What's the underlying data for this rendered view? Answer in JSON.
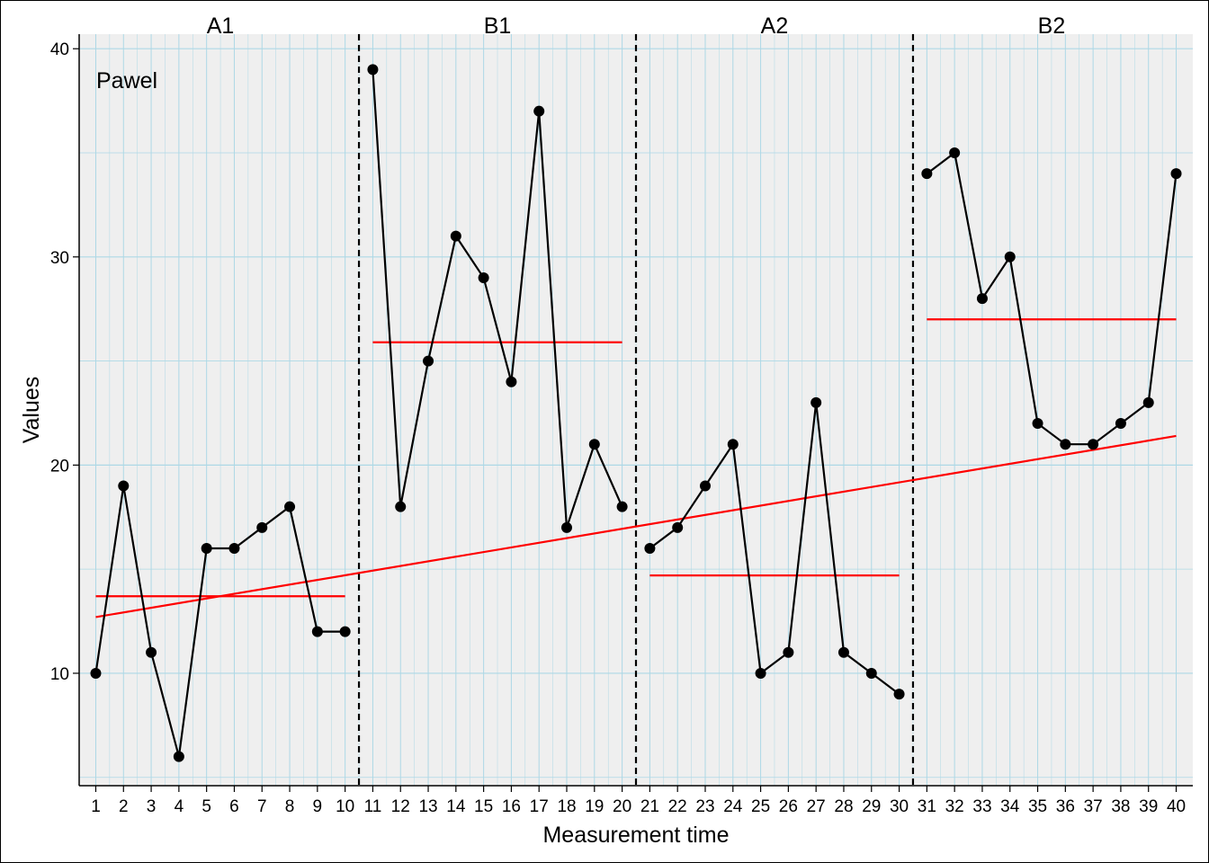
{
  "chart_data": {
    "type": "line",
    "title": "",
    "case_label": "Pawel",
    "xlabel": "Measurement time",
    "ylabel": "Values",
    "xlim": [
      0.4,
      40.6
    ],
    "ylim": [
      4.6,
      40.7
    ],
    "x_ticks": [
      1,
      2,
      3,
      4,
      5,
      6,
      7,
      8,
      9,
      10,
      11,
      12,
      13,
      14,
      15,
      16,
      17,
      18,
      19,
      20,
      21,
      22,
      23,
      24,
      25,
      26,
      27,
      28,
      29,
      30,
      31,
      32,
      33,
      34,
      35,
      36,
      37,
      38,
      39,
      40
    ],
    "y_ticks": [
      10,
      20,
      30,
      40
    ],
    "grid": true,
    "phases": [
      {
        "label": "A1",
        "start": 1,
        "end": 10,
        "mean": 13.7
      },
      {
        "label": "B1",
        "start": 11,
        "end": 20,
        "mean": 25.9
      },
      {
        "label": "A2",
        "start": 21,
        "end": 30,
        "mean": 14.7
      },
      {
        "label": "B2",
        "start": 31,
        "end": 40,
        "mean": 27.0
      }
    ],
    "phase_boundaries": [
      10.5,
      20.5,
      30.5
    ],
    "series": [
      {
        "x": [
          1,
          2,
          3,
          4,
          5,
          6,
          7,
          8,
          9,
          10,
          11,
          12,
          13,
          14,
          15,
          16,
          17,
          18,
          19,
          20,
          21,
          22,
          23,
          24,
          25,
          26,
          27,
          28,
          29,
          30,
          31,
          32,
          33,
          34,
          35,
          36,
          37,
          38,
          39,
          40
        ],
        "values": [
          10,
          19,
          11,
          6,
          16,
          16,
          17,
          18,
          12,
          12,
          39,
          18,
          25,
          31,
          29,
          24,
          37,
          17,
          21,
          18,
          16,
          17,
          19,
          21,
          10,
          11,
          23,
          11,
          10,
          9,
          34,
          35,
          28,
          30,
          22,
          21,
          21,
          22,
          23,
          34
        ]
      }
    ],
    "trend_line": {
      "x": [
        1,
        40
      ],
      "y": [
        12.7,
        21.4
      ]
    },
    "colors": {
      "panel_background": "#efefef",
      "grid": "#add8e6",
      "series": "#000000",
      "trend_and_means": "#ff0000",
      "phase_lines": "#000000"
    }
  }
}
